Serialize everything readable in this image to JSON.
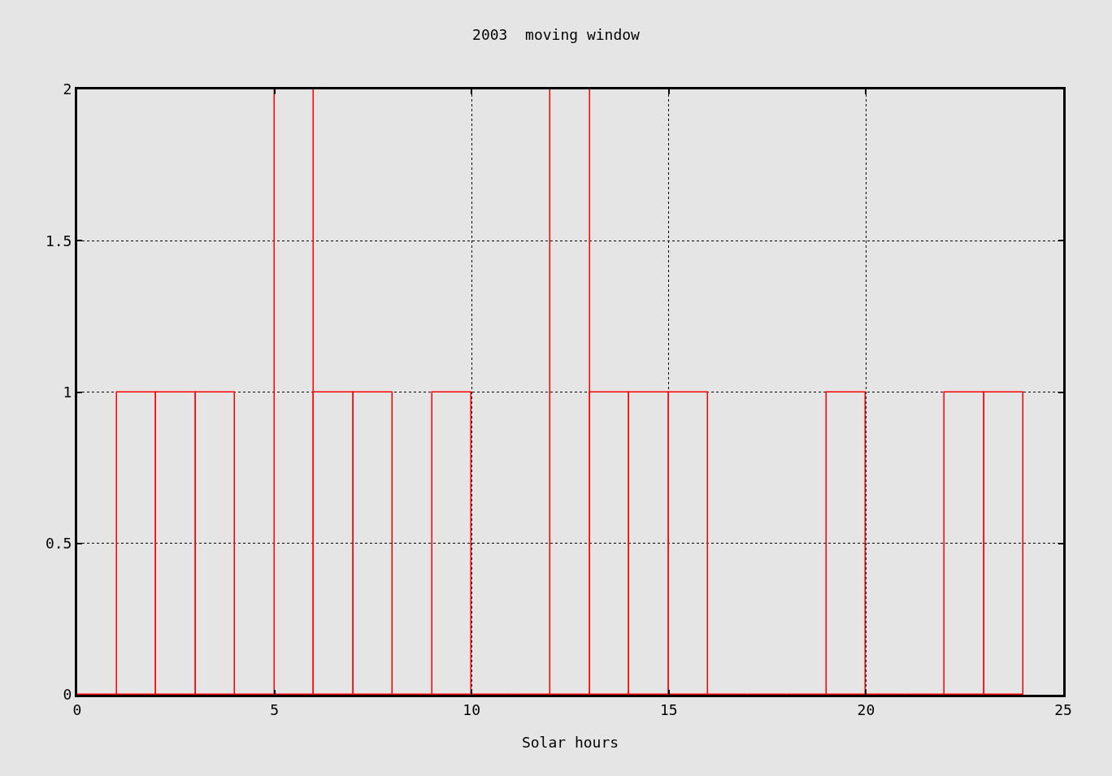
{
  "chart_data": {
    "type": "histogram",
    "title": "2003  moving window",
    "xlabel": "Solar hours",
    "bins": [
      0,
      1,
      2,
      3,
      4,
      5,
      6,
      7,
      8,
      9,
      10,
      11,
      12,
      13,
      14,
      15,
      16,
      17,
      18,
      19,
      20,
      21,
      22,
      23,
      24
    ],
    "values": [
      0,
      1,
      1,
      1,
      0,
      2,
      1,
      1,
      0,
      1,
      0,
      0,
      2,
      1,
      1,
      1,
      0,
      0,
      0,
      1,
      0,
      0,
      1,
      1
    ],
    "color": "#ff0000",
    "xlim": [
      0,
      25
    ],
    "xticks": [
      0,
      5,
      10,
      15,
      20,
      25
    ],
    "ylim": [
      0,
      2
    ],
    "yticks": [
      0,
      0.5,
      1,
      1.5,
      2
    ],
    "grid": true
  }
}
